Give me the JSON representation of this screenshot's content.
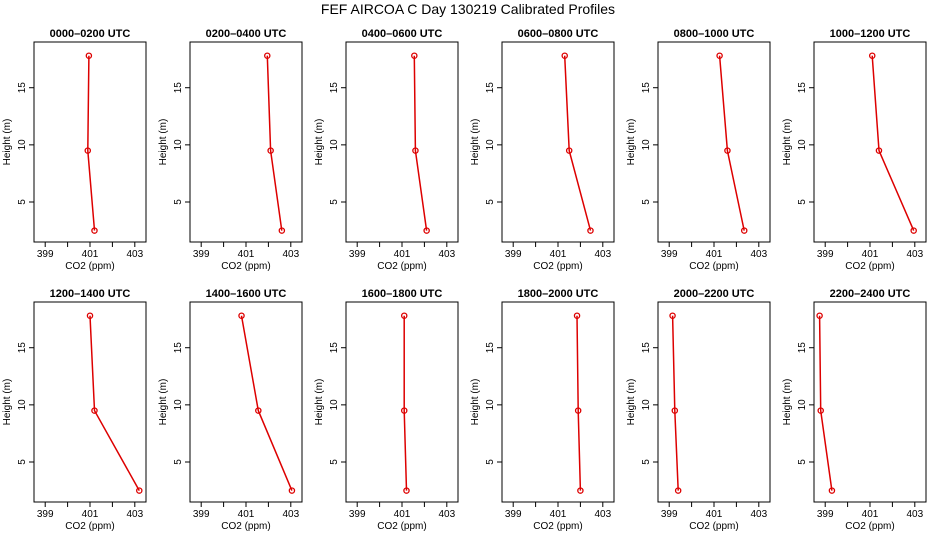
{
  "chart_data": {
    "type": "line",
    "title": "FEF AIRCOA C  Day 130219  Calibrated Profiles",
    "xlabel": "CO2 (ppm)",
    "ylabel": "Height (m)",
    "xlim": [
      398.5,
      403.5
    ],
    "ylim": [
      1.5,
      19.0
    ],
    "xticks": [
      399,
      401,
      403
    ],
    "xticks_minor": [
      400,
      402
    ],
    "yticks": [
      5,
      10,
      15
    ],
    "heights": [
      17.8,
      9.5,
      2.5
    ],
    "color": "#dd0000",
    "panels": [
      {
        "title": "0000–0200 UTC",
        "values": [
          400.95,
          400.9,
          401.2
        ]
      },
      {
        "title": "0200–0400 UTC",
        "values": [
          401.95,
          402.1,
          402.6
        ]
      },
      {
        "title": "0400–0600 UTC",
        "values": [
          401.55,
          401.6,
          402.1
        ]
      },
      {
        "title": "0600–0800 UTC",
        "values": [
          401.3,
          401.5,
          402.45
        ]
      },
      {
        "title": "0800–1000 UTC",
        "values": [
          401.25,
          401.6,
          402.35
        ]
      },
      {
        "title": "1000–1200 UTC",
        "values": [
          401.1,
          401.4,
          402.95
        ]
      },
      {
        "title": "1200–1400 UTC",
        "values": [
          401.0,
          401.2,
          403.2
        ]
      },
      {
        "title": "1400–1600 UTC",
        "values": [
          400.8,
          401.55,
          403.05
        ]
      },
      {
        "title": "1600–1800 UTC",
        "values": [
          401.1,
          401.1,
          401.2
        ]
      },
      {
        "title": "1800–2000 UTC",
        "values": [
          401.85,
          401.9,
          402.0
        ]
      },
      {
        "title": "2000–2200 UTC",
        "values": [
          399.15,
          399.25,
          399.4
        ]
      },
      {
        "title": "2200–2400 UTC",
        "values": [
          398.75,
          398.8,
          399.3
        ]
      }
    ]
  }
}
